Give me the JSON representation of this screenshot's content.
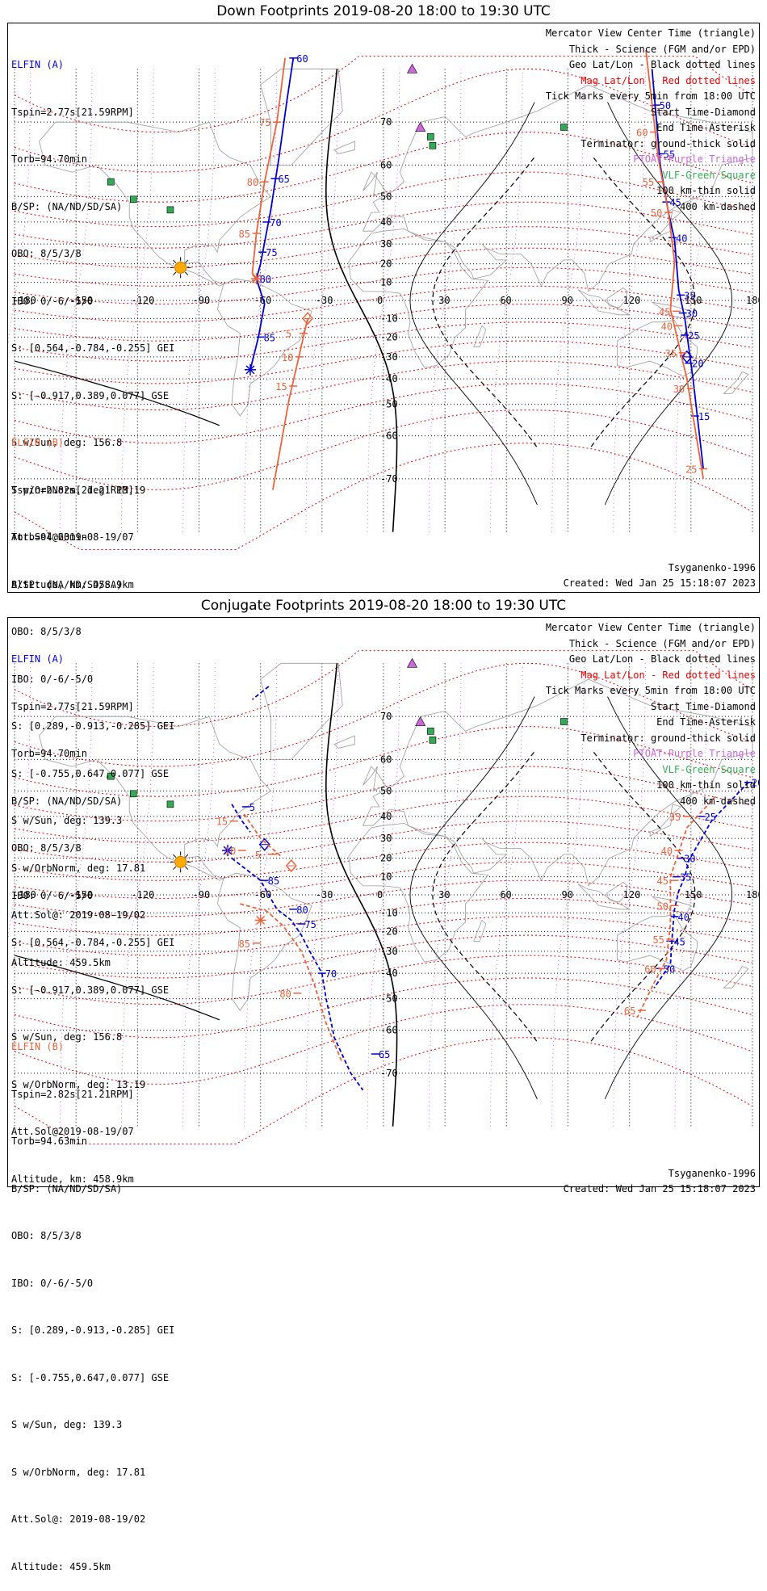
{
  "panels": [
    {
      "title": "Down Footprints 2019-08-20 18:00 to 19:30 UTC",
      "elfin_a": {
        "label": "ELFIN (A)",
        "lines": [
          "Tspin=2.77s[21.59RPM]",
          "Torb=94.70min",
          "B/SP: (NA/ND/SD/SA)",
          "OBO: 8/5/3/8",
          "IBO: 0/-6/-5/0",
          "S: [0.564,-0.784,-0.255] GEI",
          "S: [-0.917,0.389,0.077] GSE",
          "S w/Sun, deg: 156.8",
          "S w/OrbNorm, deg: 13.19",
          "Att.Sol@2019-08-19/07",
          "Altitude, km: 458.9km"
        ]
      },
      "elfin_b": {
        "label": "ELFIN (B)",
        "lines": [
          "Tspin=2.82s[21.21RPM]",
          "Torb=94.63min",
          "B/SP: (NA/ND/SD/SA)",
          "OBO: 8/5/3/8",
          "IBO: 0/-6/-5/0",
          "S: [0.289,-0.913,-0.285] GEI",
          "S: [-0.755,0.647,0.077] GSE",
          "S w/Sun, deg: 139.3",
          "S w/OrbNorm, deg: 17.81",
          "Att.Sol@: 2019-08-19/02",
          "Altitude: 459.5km"
        ]
      },
      "legend": [
        {
          "text": "Mercator View Center Time (triangle)",
          "color": "#000000"
        },
        {
          "text": "Thick - Science (FGM and/or EPD)",
          "color": "#000000"
        },
        {
          "text": "Geo Lat/Lon - Black dotted lines",
          "color": "#000000"
        },
        {
          "text": "Mag Lat/Lon - Red dotted lines",
          "color": "#e00000"
        },
        {
          "text": "Tick Marks every 5min from 18:00 UTC",
          "color": "#000000"
        },
        {
          "text": "Start Time-Diamond",
          "color": "#000000"
        },
        {
          "text": "End Time-Asterisk",
          "color": "#000000"
        },
        {
          "text": "Terminator: ground-thick solid",
          "color": "#000000"
        },
        {
          "text": "PTOAT-Purple Triangle",
          "color": "#cc66dd"
        },
        {
          "text": "VLF-Green Square",
          "color": "#33aa55"
        },
        {
          "text": "100 km-thin solid",
          "color": "#000000"
        },
        {
          "text": "400 km-dashed",
          "color": "#000000"
        }
      ],
      "model": "Tsyganenko-1996",
      "created": "Created: Wed Jan 25 15:18:07 2023"
    },
    {
      "title": "Conjugate Footprints 2019-08-20 18:00 to 19:30 UTC",
      "elfin_a": {
        "label": "ELFIN (A)",
        "lines": [
          "Tspin=2.77s[21.59RPM]",
          "Torb=94.70min",
          "B/SP: (NA/ND/SD/SA)",
          "OBO: 8/5/3/8",
          "IBO: 0/-6/-5/0",
          "S: [0.564,-0.784,-0.255] GEI",
          "S: [-0.917,0.389,0.077] GSE",
          "S w/Sun, deg: 156.8",
          "S w/OrbNorm, deg: 13.19",
          "Att.Sol@2019-08-19/07",
          "Altitude, km: 458.9km"
        ]
      },
      "elfin_b": {
        "label": "ELFIN (B)",
        "lines": [
          "Tspin=2.82s[21.21RPM]",
          "Torb=94.63min",
          "B/SP: (NA/ND/SD/SA)",
          "OBO: 8/5/3/8",
          "IBO: 0/-6/-5/0",
          "S: [0.289,-0.913,-0.285] GEI",
          "S: [-0.755,0.647,0.077] GSE",
          "S w/Sun, deg: 139.3",
          "S w/OrbNorm, deg: 17.81",
          "Att.Sol@: 2019-08-19/02",
          "Altitude: 459.5km"
        ]
      },
      "legend": [
        {
          "text": "Mercator View Center Time (triangle)",
          "color": "#000000"
        },
        {
          "text": "Thick - Science (FGM and/or EPD)",
          "color": "#000000"
        },
        {
          "text": "Geo Lat/Lon - Black dotted lines",
          "color": "#000000"
        },
        {
          "text": "Mag Lat/Lon - Red dotted lines",
          "color": "#e00000"
        },
        {
          "text": "Tick Marks every 5min from 18:00 UTC",
          "color": "#000000"
        },
        {
          "text": "Start Time-Diamond",
          "color": "#000000"
        },
        {
          "text": "End Time-Asterisk",
          "color": "#000000"
        },
        {
          "text": "Terminator: ground-thick solid",
          "color": "#000000"
        },
        {
          "text": "PTOAT-Purple Triangle",
          "color": "#cc66dd"
        },
        {
          "text": "VLF-Green Square",
          "color": "#33aa55"
        },
        {
          "text": "100 km-thin solid",
          "color": "#000000"
        },
        {
          "text": "400 km-dashed",
          "color": "#000000"
        }
      ],
      "model": "Tsyganenko-1996",
      "created": "Created: Wed Jan 25 15:18:07 2023"
    }
  ],
  "map": {
    "lon_ticks": [
      "-180",
      "-150",
      "-120",
      "-90",
      "-60",
      "-30",
      "0",
      "30",
      "60",
      "90",
      "120",
      "150",
      "180"
    ],
    "lat_labels": [
      {
        "lat": 70,
        "label": "70"
      },
      {
        "lat": 60,
        "label": "60"
      },
      {
        "lat": 50,
        "label": "50"
      },
      {
        "lat": 40,
        "label": "40"
      },
      {
        "lat": 30,
        "label": "30"
      },
      {
        "lat": 20,
        "label": "20"
      },
      {
        "lat": 10,
        "label": "10"
      },
      {
        "lat": -10,
        "label": "-10"
      },
      {
        "lat": -20,
        "label": "-20"
      },
      {
        "lat": -30,
        "label": "-30"
      },
      {
        "lat": -40,
        "label": "-40"
      },
      {
        "lat": -50,
        "label": "-50"
      },
      {
        "lat": -60,
        "label": "-60"
      },
      {
        "lat": -70,
        "label": "-70"
      }
    ],
    "colors": {
      "elfin_a": "#0000cc",
      "elfin_b": "#e8643c",
      "mag_grid": "#e00000",
      "geo_grid": "#000000",
      "ptoat": "#cc66dd",
      "vlf": "#33aa55",
      "sun": "#ffaa00"
    },
    "sun": {
      "lon": -99,
      "lat": 18
    },
    "vlf_stations": [
      {
        "lon": -133,
        "lat": 55
      },
      {
        "lon": -104,
        "lat": 45
      },
      {
        "lon": -122,
        "lat": 49
      },
      {
        "lon": 23,
        "lat": 67
      },
      {
        "lon": 24,
        "lat": 65
      },
      {
        "lon": 88,
        "lat": 69
      }
    ],
    "ptoat": [
      {
        "lon": 14,
        "lat": 78
      },
      {
        "lon": 18,
        "lat": 69
      }
    ]
  },
  "tracks": {
    "down_a": {
      "color": "#0000cc",
      "segments": [
        {
          "science": false,
          "dashed": false,
          "points": [
            [
              -44,
              79.2
            ],
            [
              -47,
              74
            ],
            [
              -51,
              62
            ],
            [
              -55,
              45
            ],
            [
              -60,
              20
            ],
            [
              -62,
              12
            ],
            [
              -58,
              -2
            ],
            [
              -61,
              -20
            ],
            [
              -65,
              -36
            ]
          ]
        },
        {
          "science": false,
          "dashed": false,
          "points": [
            [
              131,
              78
            ],
            [
              135,
              60
            ],
            [
              139,
              44
            ],
            [
              142,
              32
            ],
            [
              144,
              6
            ],
            [
              147,
              -10
            ],
            [
              151,
              -40
            ],
            [
              156,
              -68
            ]
          ]
        }
      ],
      "ticks": [
        {
          "lon": -44,
          "lat": 79.2,
          "label": "60",
          "side": "r"
        },
        {
          "lon": -53,
          "lat": 56,
          "label": "65",
          "side": "r"
        },
        {
          "lon": -57,
          "lat": 40,
          "label": "70",
          "side": "r"
        },
        {
          "lon": -59,
          "lat": 26,
          "label": "75",
          "side": "r"
        },
        {
          "lon": -62,
          "lat": 12,
          "label": "80",
          "side": "r"
        },
        {
          "lon": -60,
          "lat": -20,
          "label": "85",
          "side": "r"
        },
        {
          "lon": 138,
          "lat": 48,
          "label": "45",
          "side": "r"
        },
        {
          "lon": 141,
          "lat": 33,
          "label": "40",
          "side": "r"
        },
        {
          "lon": 145,
          "lat": 3,
          "label": "35",
          "side": "r"
        },
        {
          "lon": 146,
          "lat": -7,
          "label": "30",
          "side": "r"
        },
        {
          "lon": 147,
          "lat": -19,
          "label": "25",
          "side": "r"
        },
        {
          "lon": 149,
          "lat": -33,
          "label": "20",
          "side": "r"
        },
        {
          "lon": 152,
          "lat": -54,
          "label": "15",
          "side": "r"
        },
        {
          "lon": 133,
          "lat": 73,
          "label": "50",
          "side": "r"
        },
        {
          "lon": 135,
          "lat": 63,
          "label": "55",
          "side": "r"
        }
      ],
      "start": {
        "lon": 148,
        "lat": -30
      },
      "end": {
        "lon": -65,
        "lat": -36
      }
    },
    "down_b": {
      "color": "#e8643c",
      "segments": [
        {
          "science": false,
          "dashed": false,
          "points": [
            [
              -48,
              79.2
            ],
            [
              -52,
              70
            ],
            [
              -58,
              55
            ],
            [
              -62,
              35
            ],
            [
              -64,
              15
            ],
            [
              -62,
              12
            ]
          ]
        },
        {
          "science": false,
          "dashed": false,
          "points": [
            [
              -37,
              -10
            ],
            [
              -46,
              -48
            ],
            [
              -54,
              -72
            ]
          ]
        },
        {
          "science": false,
          "dashed": false,
          "points": [
            [
              128,
              80
            ],
            [
              134,
              62
            ],
            [
              139,
              44
            ],
            [
              142,
              21
            ],
            [
              140,
              -5
            ],
            [
              148,
              -40
            ],
            [
              156,
              -70
            ]
          ]
        }
      ],
      "ticks": [
        {
          "lon": -52,
          "lat": 70,
          "label": "75",
          "side": "l"
        },
        {
          "lon": -58,
          "lat": 55,
          "label": "80",
          "side": "l"
        },
        {
          "lon": -62,
          "lat": 35,
          "label": "85",
          "side": "l"
        },
        {
          "lon": -39,
          "lat": -18,
          "label": "5",
          "side": "l"
        },
        {
          "lon": -41,
          "lat": -30,
          "label": "10",
          "side": "l"
        },
        {
          "lon": -44,
          "lat": -43,
          "label": "15",
          "side": "l"
        },
        {
          "lon": 132,
          "lat": 68,
          "label": "60",
          "side": "l"
        },
        {
          "lon": 135,
          "lat": 55,
          "label": "55",
          "side": "l"
        },
        {
          "lon": 139,
          "lat": 44,
          "label": "50",
          "side": "l"
        },
        {
          "lon": 143,
          "lat": -6,
          "label": "45",
          "side": "l"
        },
        {
          "lon": 144,
          "lat": -14,
          "label": "40",
          "side": "l"
        },
        {
          "lon": 146,
          "lat": -28,
          "label": "35",
          "side": "l"
        },
        {
          "lon": 150,
          "lat": -44,
          "label": "30",
          "side": "l"
        },
        {
          "lon": 156,
          "lat": -68,
          "label": "25",
          "side": "l"
        }
      ],
      "start": {
        "lon": -37,
        "lat": -10
      },
      "end": {
        "lon": -62,
        "lat": 12
      }
    },
    "conj_a": {
      "color": "#0000cc",
      "segments": [
        {
          "science": false,
          "dashed": true,
          "points": [
            [
              -56,
              75
            ],
            [
              -64,
              73
            ]
          ]
        },
        {
          "science": false,
          "dashed": true,
          "points": [
            [
              -74,
              45
            ],
            [
              -69,
              38
            ],
            [
              -65,
              33
            ]
          ]
        },
        {
          "science": false,
          "dashed": true,
          "points": [
            [
              -74,
              20
            ],
            [
              -60,
              8
            ],
            [
              -52,
              -8
            ],
            [
              -45,
              -14
            ],
            [
              -40,
              -22
            ],
            [
              -36,
              -30
            ],
            [
              -30,
              -40
            ],
            [
              -28,
              -50
            ],
            [
              -24,
              -62
            ],
            [
              -16,
              -70
            ],
            [
              -10,
              -73
            ]
          ]
        },
        {
          "science": false,
          "dashed": true,
          "points": [
            [
              178,
              53
            ],
            [
              160,
              38
            ],
            [
              154,
              28
            ],
            [
              149,
              19
            ],
            [
              147,
              10
            ],
            [
              144,
              2
            ],
            [
              142,
              -8
            ],
            [
              141,
              -20
            ],
            [
              140,
              -36
            ],
            [
              132,
              -46
            ]
          ]
        }
      ],
      "ticks": [
        {
          "lon": -67,
          "lat": 44,
          "label": "5",
          "side": "r"
        },
        {
          "lon": -58,
          "lat": 8,
          "label": "85",
          "side": "r"
        },
        {
          "lon": -44,
          "lat": -8,
          "label": "80",
          "side": "r"
        },
        {
          "lon": -40,
          "lat": -16,
          "label": "75",
          "side": "r"
        },
        {
          "lon": -30,
          "lat": -40,
          "label": "70",
          "side": "r"
        },
        {
          "lon": -4,
          "lat": -66,
          "label": "65",
          "side": "r"
        },
        {
          "lon": 178,
          "lat": 53,
          "label": "20",
          "side": "r"
        },
        {
          "lon": 155,
          "lat": 40,
          "label": "25",
          "side": "r"
        },
        {
          "lon": 145,
          "lat": 20,
          "label": "30",
          "side": "r"
        },
        {
          "lon": 143,
          "lat": 10,
          "label": "35",
          "side": "r"
        },
        {
          "lon": 142,
          "lat": -12,
          "label": "40",
          "side": "r"
        },
        {
          "lon": 140,
          "lat": -25,
          "label": "45",
          "side": "r"
        },
        {
          "lon": 135,
          "lat": -38,
          "label": "50",
          "side": "r"
        }
      ],
      "start": {
        "lon": -58,
        "lat": 27
      },
      "end": {
        "lon": -76,
        "lat": 24
      }
    },
    "conj_b": {
      "color": "#e8643c",
      "segments": [
        {
          "science": false,
          "dashed": true,
          "points": [
            [
              -68,
              41
            ],
            [
              -60,
              30
            ],
            [
              -50,
              21
            ]
          ]
        },
        {
          "science": false,
          "dashed": true,
          "points": [
            [
              -70,
              -5
            ],
            [
              -57,
              -9
            ],
            [
              -49,
              -17
            ],
            [
              -40,
              -30
            ],
            [
              -34,
              -44
            ],
            [
              -28,
              -58
            ],
            [
              -20,
              -68
            ]
          ]
        },
        {
          "science": false,
          "dashed": true,
          "points": [
            [
              162,
              48
            ],
            [
              148,
              35
            ],
            [
              140,
              10
            ],
            [
              140,
              -16
            ],
            [
              138,
              -34
            ],
            [
              132,
              -44
            ],
            [
              124,
              -56
            ]
          ]
        }
      ],
      "ticks": [
        {
          "lon": -73,
          "lat": 38,
          "label": "15",
          "side": "l"
        },
        {
          "lon": -69,
          "lat": 24,
          "label": "10",
          "side": "l"
        },
        {
          "lon": -54,
          "lat": 22,
          "label": "5",
          "side": "l"
        },
        {
          "lon": -62,
          "lat": -26,
          "label": "85",
          "side": "l"
        },
        {
          "lon": -42,
          "lat": -48,
          "label": "80",
          "side": "l"
        },
        {
          "lon": 148,
          "lat": 40,
          "label": "35",
          "side": "l"
        },
        {
          "lon": 144,
          "lat": 24,
          "label": "40",
          "side": "l"
        },
        {
          "lon": 142,
          "lat": 8,
          "label": "45",
          "side": "l"
        },
        {
          "lon": 142,
          "lat": -6,
          "label": "50",
          "side": "l"
        },
        {
          "lon": 140,
          "lat": -24,
          "label": "55",
          "side": "l"
        },
        {
          "lon": 136,
          "lat": -38,
          "label": "60",
          "side": "l"
        },
        {
          "lon": 126,
          "lat": -54,
          "label": "65",
          "side": "l"
        }
      ],
      "start": {
        "lon": -45,
        "lat": 16
      },
      "end": {
        "lon": -60,
        "lat": -14
      }
    }
  }
}
